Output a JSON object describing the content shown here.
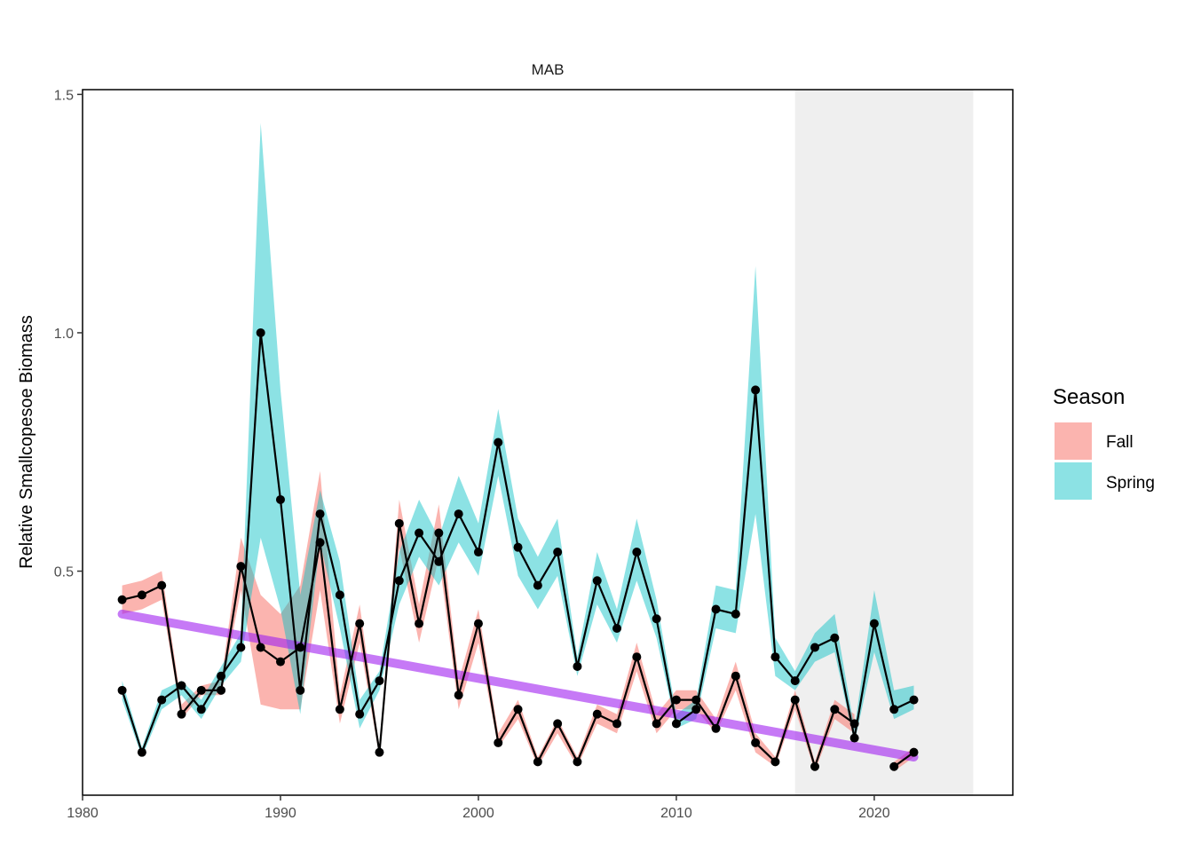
{
  "chart_data": {
    "type": "line",
    "title": "MAB",
    "xlabel": "",
    "ylabel": "Relative Smallcopesoe Biomass",
    "xlim": [
      1980,
      2027
    ],
    "ylim": [
      0.03,
      1.51
    ],
    "x_ticks": [
      1980,
      1990,
      2000,
      2010,
      2020
    ],
    "x_tick_labels": [
      "1980",
      "1990",
      "2000",
      "2010",
      "2020"
    ],
    "y_ticks": [
      0.5,
      1.0,
      1.5
    ],
    "y_tick_labels": [
      "0.5",
      "1.0",
      "1.5"
    ],
    "grid": false,
    "shaded_period": [
      2016,
      2025
    ],
    "legend": {
      "title": "Season",
      "position": "right"
    },
    "colors": {
      "Fall": "#F8766D",
      "Spring": "#00BFC4",
      "trend": "#A020F0",
      "line": "#000000"
    },
    "series": [
      {
        "name": "Fall",
        "x": [
          1982,
          1983,
          1984,
          1985,
          1986,
          1987,
          1988,
          1989,
          1990,
          1991,
          1992,
          1993,
          1994,
          1995,
          1996,
          1997,
          1998,
          1999,
          2000,
          2001,
          2002,
          2003,
          2004,
          2005,
          2006,
          2007,
          2008,
          2009,
          2010,
          2011,
          2012,
          2013,
          2014,
          2015,
          2016,
          2017,
          2018,
          2019,
          2020,
          2021,
          2022
        ],
        "y": [
          0.44,
          0.45,
          0.47,
          0.2,
          0.25,
          0.25,
          0.51,
          0.34,
          0.31,
          0.34,
          0.56,
          0.21,
          0.39,
          0.12,
          0.6,
          0.39,
          0.58,
          0.24,
          0.39,
          0.14,
          0.21,
          0.1,
          0.18,
          0.1,
          0.2,
          0.18,
          0.32,
          0.18,
          0.23,
          0.23,
          0.17,
          0.28,
          0.14,
          0.1,
          0.23,
          0.09,
          0.21,
          0.18,
          null,
          0.09,
          0.12
        ],
        "lower": [
          0.41,
          0.42,
          0.44,
          0.19,
          0.24,
          0.24,
          0.46,
          0.22,
          0.21,
          0.21,
          0.46,
          0.18,
          0.35,
          0.11,
          0.55,
          0.35,
          0.53,
          0.21,
          0.35,
          0.13,
          0.19,
          0.09,
          0.16,
          0.09,
          0.18,
          0.16,
          0.29,
          0.16,
          0.21,
          0.21,
          0.16,
          0.25,
          0.12,
          0.09,
          0.21,
          0.08,
          0.19,
          0.16,
          null,
          0.08,
          0.11
        ],
        "upper": [
          0.47,
          0.48,
          0.5,
          0.22,
          0.26,
          0.27,
          0.57,
          0.45,
          0.41,
          0.47,
          0.71,
          0.24,
          0.43,
          0.13,
          0.65,
          0.43,
          0.64,
          0.27,
          0.42,
          0.16,
          0.23,
          0.11,
          0.19,
          0.11,
          0.22,
          0.2,
          0.35,
          0.2,
          0.25,
          0.25,
          0.19,
          0.31,
          0.16,
          0.11,
          0.25,
          0.1,
          0.23,
          0.2,
          null,
          0.1,
          0.13
        ]
      },
      {
        "name": "Spring",
        "x": [
          1982,
          1983,
          1984,
          1985,
          1986,
          1987,
          1988,
          1989,
          1990,
          1991,
          1992,
          1993,
          1994,
          1995,
          1996,
          1997,
          1998,
          1999,
          2000,
          2001,
          2002,
          2003,
          2004,
          2005,
          2006,
          2007,
          2008,
          2009,
          2010,
          2011,
          2012,
          2013,
          2014,
          2015,
          2016,
          2017,
          2018,
          2019,
          2020,
          2021,
          2022
        ],
        "y": [
          0.25,
          0.12,
          0.23,
          0.26,
          0.21,
          0.28,
          0.34,
          1.0,
          0.65,
          0.25,
          0.62,
          0.45,
          0.2,
          0.27,
          0.48,
          0.58,
          0.52,
          0.62,
          0.54,
          0.77,
          0.55,
          0.47,
          0.54,
          0.3,
          0.48,
          0.38,
          0.54,
          0.4,
          0.18,
          0.21,
          0.42,
          0.41,
          0.88,
          0.32,
          0.27,
          0.34,
          0.36,
          0.15,
          0.39,
          0.21,
          0.23
        ],
        "lower": [
          0.23,
          0.11,
          0.21,
          0.24,
          0.19,
          0.26,
          0.31,
          0.57,
          0.42,
          0.2,
          0.56,
          0.38,
          0.17,
          0.25,
          0.43,
          0.53,
          0.47,
          0.56,
          0.49,
          0.7,
          0.49,
          0.42,
          0.49,
          0.28,
          0.43,
          0.35,
          0.48,
          0.36,
          0.17,
          0.19,
          0.38,
          0.37,
          0.62,
          0.28,
          0.25,
          0.31,
          0.33,
          0.14,
          0.33,
          0.19,
          0.21
        ],
        "upper": [
          0.27,
          0.13,
          0.25,
          0.27,
          0.23,
          0.3,
          0.37,
          1.44,
          0.88,
          0.45,
          0.67,
          0.52,
          0.23,
          0.29,
          0.54,
          0.65,
          0.57,
          0.7,
          0.6,
          0.84,
          0.61,
          0.53,
          0.61,
          0.32,
          0.54,
          0.42,
          0.61,
          0.44,
          0.2,
          0.23,
          0.47,
          0.46,
          1.14,
          0.36,
          0.29,
          0.37,
          0.41,
          0.17,
          0.46,
          0.25,
          0.26
        ]
      }
    ],
    "trend": {
      "x": [
        1982,
        2022
      ],
      "y": [
        0.41,
        0.11
      ]
    }
  }
}
